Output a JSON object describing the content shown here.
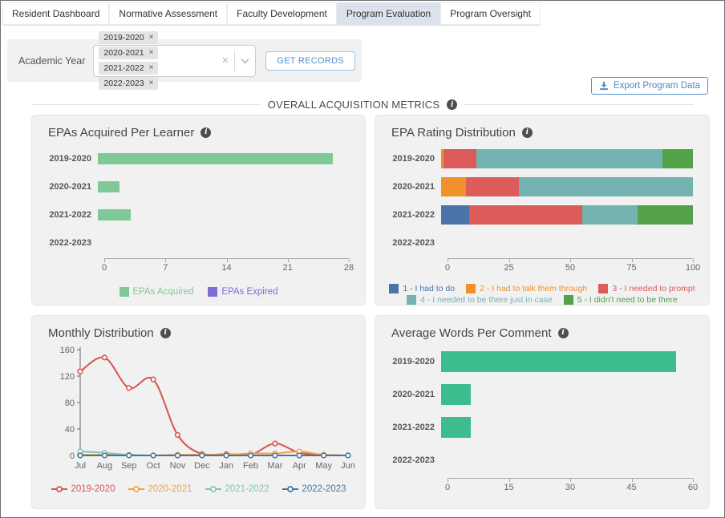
{
  "tabs": [
    {
      "label": "Resident Dashboard",
      "active": false
    },
    {
      "label": "Normative Assessment",
      "active": false
    },
    {
      "label": "Faculty Development",
      "active": false
    },
    {
      "label": "Program Evaluation",
      "active": true
    },
    {
      "label": "Program Oversight",
      "active": false
    }
  ],
  "filters": {
    "academic_year_label": "Academic Year",
    "selected_years": [
      "2019-2020",
      "2020-2021",
      "2021-2022",
      "2022-2023"
    ],
    "get_records_label": "GET RECORDS"
  },
  "export_button_label": "Export Program Data",
  "section_title": "OVERALL ACQUISITION METRICS",
  "colors": {
    "accent_blue": "#4c89c6",
    "active_tab_bg": "#dbe2ec",
    "panel_bg": "#f1f1f1"
  },
  "chart_data": [
    {
      "id": "epas-per-learner",
      "type": "bar",
      "orientation": "horizontal",
      "title": "EPAs Acquired Per Learner",
      "categories": [
        "2019-2020",
        "2020-2021",
        "2021-2022",
        "2022-2023"
      ],
      "series": [
        {
          "name": "EPAs Acquired",
          "color": "#80c898",
          "values": [
            26.2,
            2.4,
            3.7,
            0
          ]
        },
        {
          "name": "EPAs Expired",
          "color": "#7b6dd4",
          "values": [
            0,
            0,
            0,
            0
          ]
        }
      ],
      "xlim": [
        0,
        28
      ],
      "xticks": [
        0,
        7,
        14,
        21,
        28
      ],
      "legend_position": "bottom"
    },
    {
      "id": "epa-rating-distribution",
      "type": "stacked-bar",
      "orientation": "horizontal",
      "title": "EPA Rating Distribution",
      "categories": [
        "2019-2020",
        "2020-2021",
        "2021-2022",
        "2022-2023"
      ],
      "series": [
        {
          "name": "1 - I had to do",
          "color": "#4a74a8",
          "values": [
            0,
            0,
            11,
            0
          ]
        },
        {
          "name": "2 - I had to talk them through",
          "color": "#f0912d",
          "values": [
            1,
            10,
            0,
            0
          ]
        },
        {
          "name": "3 - I needed to prompt",
          "color": "#dc5b5b",
          "values": [
            13,
            21,
            45,
            0
          ]
        },
        {
          "name": "4 - I needed to be there just in case",
          "color": "#74b3b0",
          "values": [
            74,
            69,
            22,
            0
          ]
        },
        {
          "name": "5 - I didn't need to be there",
          "color": "#53a148",
          "values": [
            12,
            0,
            22,
            0
          ]
        }
      ],
      "xlim": [
        0,
        100
      ],
      "xticks": [
        0,
        25,
        50,
        75,
        100
      ],
      "legend_position": "bottom"
    },
    {
      "id": "monthly-distribution",
      "type": "line",
      "title": "Monthly Distribution",
      "x": [
        "Jul",
        "Aug",
        "Sep",
        "Oct",
        "Nov",
        "Dec",
        "Jan",
        "Feb",
        "Mar",
        "Apr",
        "May",
        "Jun"
      ],
      "series": [
        {
          "name": "2019-2020",
          "color": "#d9534f",
          "values": [
            127,
            148,
            102,
            115,
            31,
            2,
            2,
            1,
            18,
            4,
            1,
            0
          ]
        },
        {
          "name": "2020-2021",
          "color": "#f0a443",
          "values": [
            1,
            1,
            0,
            0,
            1,
            1,
            1,
            3,
            3,
            6,
            1,
            0
          ]
        },
        {
          "name": "2021-2022",
          "color": "#7cc3bd",
          "values": [
            6,
            4,
            1,
            0,
            0,
            0,
            0,
            0,
            0,
            0,
            0,
            0
          ]
        },
        {
          "name": "2022-2023",
          "color": "#44779e",
          "values": [
            0,
            0,
            0,
            0,
            0,
            0,
            0,
            0,
            0,
            0,
            0,
            0
          ]
        }
      ],
      "ylim": [
        0,
        160
      ],
      "yticks": [
        0,
        40,
        80,
        120,
        160
      ],
      "legend_position": "bottom",
      "grid": false
    },
    {
      "id": "avg-words-per-comment",
      "type": "bar",
      "orientation": "horizontal",
      "title": "Average Words Per Comment",
      "categories": [
        "2019-2020",
        "2020-2021",
        "2021-2022",
        "2022-2023"
      ],
      "series": [
        {
          "name": "Average Words Per Comment",
          "color": "#3dbd8d",
          "values": [
            56,
            7,
            7,
            0
          ]
        }
      ],
      "xlim": [
        0,
        60
      ],
      "xticks": [
        0,
        15,
        30,
        45,
        60
      ],
      "legend_position": "none"
    }
  ]
}
